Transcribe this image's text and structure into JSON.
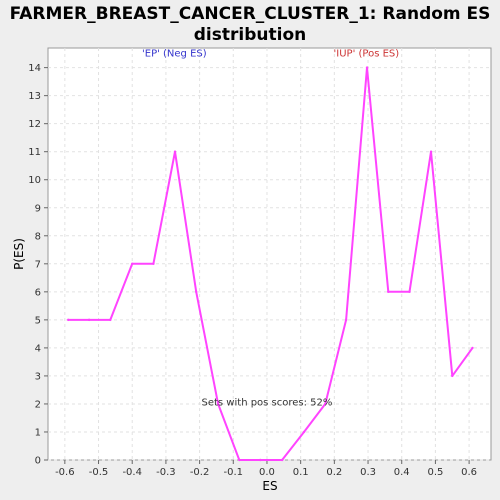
{
  "chart_data": {
    "type": "line",
    "title_line1": "FARMER_BREAST_CANCER_CLUSTER_1: Random ES",
    "title_line2": "distribution",
    "xlabel": "ES",
    "ylabel": "P(ES)",
    "xlim": [
      -0.65,
      0.665
    ],
    "ylim": [
      0,
      14.7
    ],
    "xticks": [
      -0.6,
      -0.5,
      -0.4,
      -0.3,
      -0.2,
      -0.1,
      0.0,
      0.1,
      0.2,
      0.3,
      0.4,
      0.5,
      0.6
    ],
    "xtick_labels": [
      "-0.6",
      "-0.5",
      "-0.4",
      "-0.3",
      "-0.2",
      "-0.1",
      "0.0",
      "0.1",
      "0.2",
      "0.3",
      "0.4",
      "0.5",
      "0.6"
    ],
    "yticks": [
      0,
      1,
      2,
      3,
      4,
      5,
      6,
      7,
      8,
      9,
      10,
      11,
      12,
      13,
      14
    ],
    "grid": true,
    "series": [
      {
        "color": "#ff44ff",
        "x": [
          -0.59,
          -0.528,
          -0.465,
          -0.4,
          -0.337,
          -0.273,
          -0.21,
          -0.145,
          -0.082,
          -0.02,
          0.045,
          0.11,
          0.173,
          0.235,
          0.297,
          0.36,
          0.423,
          0.487,
          0.55,
          0.61
        ],
        "y": [
          5,
          5,
          5,
          7,
          7,
          11,
          6,
          2,
          0,
          0,
          0,
          1,
          2,
          5,
          14,
          6,
          6,
          11,
          3,
          4
        ]
      }
    ],
    "annotations": [
      {
        "text": "'EP' (Neg ES)",
        "color": "#3333cc",
        "x": -0.275,
        "y": 14.4
      },
      {
        "text": "'IUP' (Pos ES)",
        "color": "#cc3333",
        "x": 0.295,
        "y": 14.4
      },
      {
        "text": "Sets with pos scores: 52%",
        "color": "#333333",
        "x": 0.0,
        "y": 1.95
      }
    ]
  }
}
